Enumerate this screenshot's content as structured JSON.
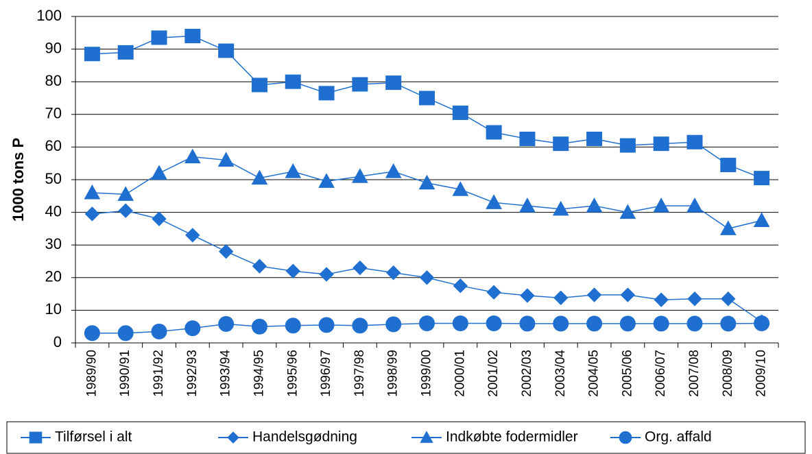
{
  "chart_data": {
    "type": "line",
    "y_label": "1000 tons P",
    "categories": [
      "1989/90",
      "1990/91",
      "1991/92",
      "1992/93",
      "1993/94",
      "1994/95",
      "1995/96",
      "1996/97",
      "1997/98",
      "1998/99",
      "1999/00",
      "2000/01",
      "2001/02",
      "2002/03",
      "2003/04",
      "2004/05",
      "2005/06",
      "2006/07",
      "2007/08",
      "2008/09",
      "2009/10"
    ],
    "series": [
      {
        "name": "Tilførsel i alt",
        "color": "#1f6fd0",
        "marker": "square",
        "values": [
          88.5,
          89,
          93.5,
          94,
          89.5,
          79,
          80,
          76.5,
          79.2,
          79.7,
          75,
          70.5,
          64.5,
          62.5,
          61,
          62.5,
          60.5,
          61,
          61.5,
          54.5,
          50.5
        ]
      },
      {
        "name": "Handelsgødning",
        "color": "#1f6fd0",
        "marker": "diamond",
        "values": [
          39.5,
          40.5,
          38,
          33,
          28,
          23.5,
          22,
          21,
          23,
          21.5,
          20,
          17.5,
          15.5,
          14.5,
          13.8,
          14.7,
          14.7,
          13.2,
          13.5,
          13.5,
          6.5
        ]
      },
      {
        "name": "Indkøbte fodermidler",
        "color": "#1f6fd0",
        "marker": "triangle",
        "values": [
          46,
          45.5,
          52,
          57,
          56,
          50.5,
          52.5,
          49.5,
          51,
          52.5,
          49,
          47,
          43,
          42,
          41,
          42,
          40,
          42,
          42,
          35,
          37.5
        ]
      },
      {
        "name": "Org. affald",
        "color": "#1f6fd0",
        "marker": "circle",
        "values": [
          3,
          3,
          3.5,
          4.5,
          5.8,
          5,
          5.3,
          5.5,
          5.3,
          5.7,
          6,
          6,
          6,
          5.9,
          5.9,
          5.9,
          5.9,
          5.9,
          5.9,
          5.9,
          6
        ]
      }
    ],
    "ylim": [
      0,
      100
    ],
    "yticks": [
      0,
      10,
      20,
      30,
      40,
      50,
      60,
      70,
      80,
      90,
      100
    ],
    "grid": true,
    "legend": "bottom"
  }
}
